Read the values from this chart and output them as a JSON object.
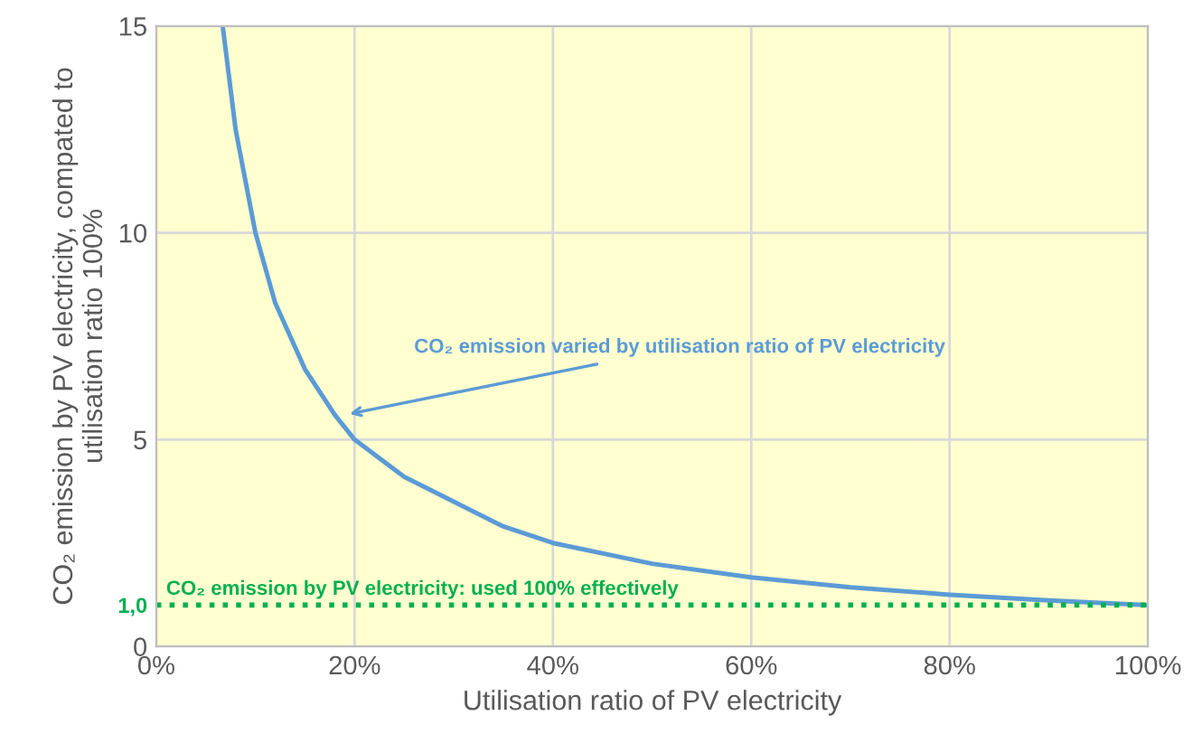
{
  "chart_data": {
    "type": "line",
    "xlabel": "Utilisation ratio of PV electricity",
    "ylabel": "CO₂ emission by PV electricity, compated to\nutilisation ratio 100%",
    "x": [
      6.7,
      8,
      10,
      12,
      15,
      18,
      20,
      25,
      30,
      35,
      40,
      50,
      60,
      70,
      80,
      90,
      100
    ],
    "series": [
      {
        "color": "#5b9bd5",
        "values": [
          15,
          12.5,
          10,
          8.3,
          6.7,
          5.6,
          5,
          4.1,
          3.5,
          2.9,
          2.5,
          2,
          1.67,
          1.43,
          1.25,
          1.11,
          1
        ]
      }
    ],
    "xlim": [
      0,
      100
    ],
    "xticks": [
      {
        "value": 0,
        "label": "0%"
      },
      {
        "value": 20,
        "label": "20%"
      },
      {
        "value": 40,
        "label": "40%"
      },
      {
        "value": 60,
        "label": "60%"
      },
      {
        "value": 80,
        "label": "80%"
      },
      {
        "value": 100,
        "label": "100%"
      }
    ],
    "ylim": [
      0,
      15
    ],
    "yticks": [
      0,
      {
        "value": 1,
        "label": "1,0"
      },
      5,
      10,
      15
    ],
    "grid": true,
    "marker": "none",
    "line_style": "solid",
    "legend": false,
    "ref_lines": [
      {
        "axis": "y",
        "value": 1,
        "label": "CO₂ emission by PV electricity: used 100% effectively",
        "color": "#00b050",
        "line_style": "dotted"
      }
    ],
    "annotations": [
      {
        "text": "CO₂ emission varied by utilisation ratio of PV electricity",
        "x": 19,
        "y": 5.6
      }
    ]
  }
}
